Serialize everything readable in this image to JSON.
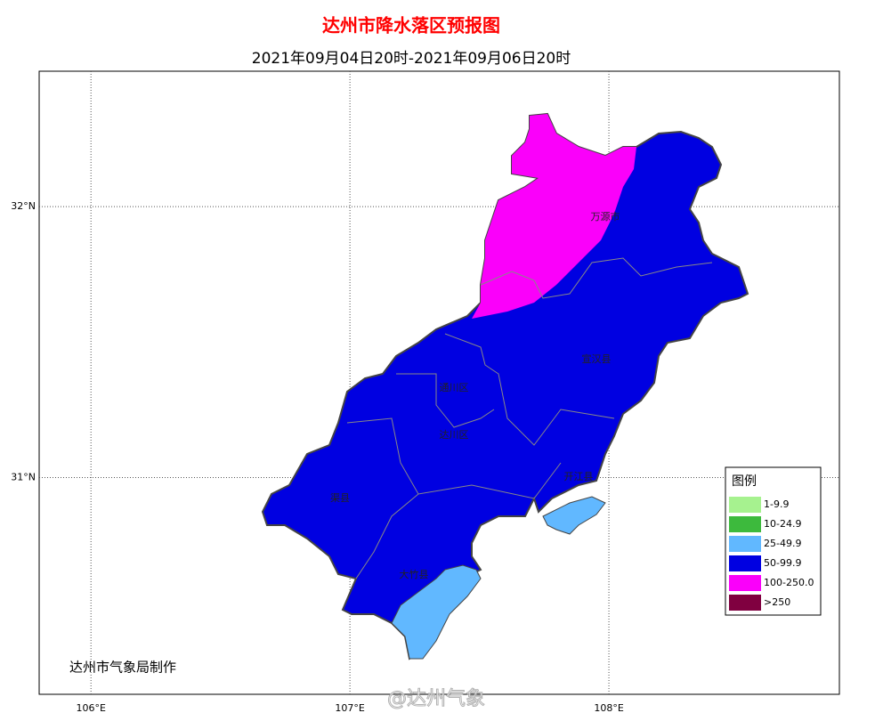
{
  "map_data": {
    "title": "达州市降水落区预报图",
    "subtitle": "2021年09月04日20时-2021年09月06日20时",
    "lonlim": [
      105.8,
      108.89
    ],
    "latlim": [
      30.2,
      32.5
    ],
    "lon_ticks": [
      {
        "value": 106,
        "label": "106°E"
      },
      {
        "value": 107,
        "label": "107°E"
      },
      {
        "value": 108,
        "label": "108°E"
      }
    ],
    "lat_ticks": [
      {
        "value": 32,
        "label": "32°N"
      },
      {
        "value": 31,
        "label": "31°N"
      }
    ],
    "districts": [
      "万源市",
      "宣汉县",
      "通川区",
      "达川区",
      "开江县",
      "渠县",
      "大竹县"
    ],
    "legend": {
      "title": "图例",
      "items": [
        {
          "label": "1-9.9",
          "color": "#a6f28f"
        },
        {
          "label": "10-24.9",
          "color": "#3dba3d"
        },
        {
          "label": "25-49.9",
          "color": "#61b8ff"
        },
        {
          "label": "50-99.9",
          "color": "#0000e1"
        },
        {
          "label": "100-250.0",
          "color": "#fa00fa"
        },
        {
          "label": ">250",
          "color": "#800040"
        }
      ]
    },
    "credit": "达州市气象局制作",
    "watermark": "@达州气象"
  }
}
